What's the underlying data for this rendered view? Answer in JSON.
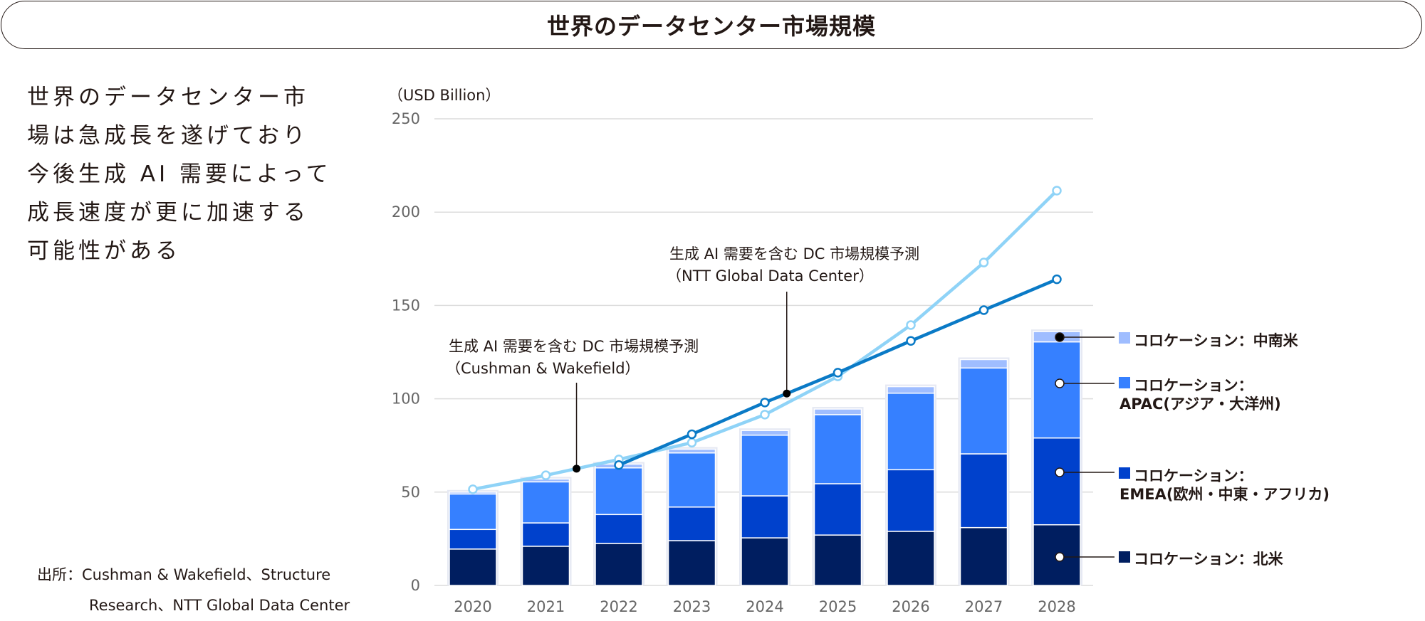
{
  "title": "世界のデータセンター市場規模",
  "lead_lines": [
    "世界のデータセンター市",
    "場は急成長を遂げており",
    "今後生成 AI 需要によって",
    "成長速度が更に加速する",
    "可能性がある"
  ],
  "source": {
    "label": "出所：",
    "line1": "Cushman & Wakefield、Structure",
    "line2": "Research、NTT Global Data Center"
  },
  "chart_data": {
    "type": "bar",
    "stacked": true,
    "unit_label": "（USD Billion）",
    "ylim": [
      0,
      250
    ],
    "yticks": [
      0,
      50,
      100,
      150,
      200,
      250
    ],
    "grid": true,
    "categories": [
      "2020",
      "2021",
      "2022",
      "2023",
      "2024",
      "2025",
      "2026",
      "2027",
      "2028"
    ],
    "series": [
      {
        "name": "コロケーション：北米",
        "color": "#001e60",
        "values": [
          19.5,
          21,
          22.5,
          24,
          25.5,
          27,
          29,
          31,
          32.5
        ]
      },
      {
        "name_lines": [
          "コロケーション：",
          "EMEA(欧州・中東・アフリカ)"
        ],
        "color": "#0041cc",
        "values": [
          10.5,
          12.5,
          15.5,
          18,
          22.5,
          27.5,
          33,
          39.5,
          46.5
        ]
      },
      {
        "name_lines": [
          "コロケーション：",
          "APAC(アジア・大洋州)"
        ],
        "color": "#3680ff",
        "values": [
          19,
          22,
          25,
          29,
          32.5,
          37,
          41,
          46,
          51.5
        ]
      },
      {
        "name": "コロケーション：中南米",
        "color": "#9fbdff",
        "values": [
          1,
          1.5,
          2,
          2,
          2.5,
          3,
          3.5,
          4.5,
          5.5
        ]
      }
    ],
    "lines": [
      {
        "name_lines": [
          "生成 AI 需要を含む DC 市場規模予測",
          "（Cushman & Wakefield）"
        ],
        "color": "#8fd3f7",
        "values": [
          51.5,
          59,
          67.5,
          76.5,
          91.5,
          112,
          139.5,
          173,
          211.5
        ]
      },
      {
        "name_lines": [
          "生成 AI 需要を含む DC 市場規模予測",
          "（NTT Global Data Center）"
        ],
        "color": "#0a7ac6",
        "values": [
          null,
          null,
          64.5,
          81,
          98,
          114,
          131,
          147.5,
          164
        ]
      }
    ]
  }
}
